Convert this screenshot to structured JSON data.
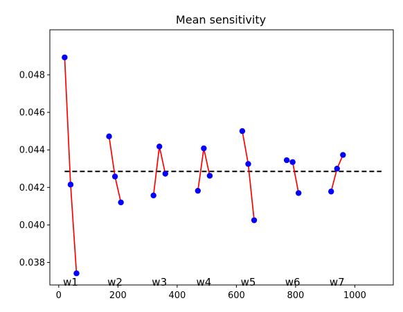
{
  "chart_data": {
    "type": "scatter",
    "title": "Mean sensitivity",
    "xlabel": "",
    "ylabel": "",
    "xlim": [
      -30,
      1130
    ],
    "ylim": [
      0.0368,
      0.0504
    ],
    "xticks": [
      0,
      200,
      400,
      600,
      800,
      1000
    ],
    "yticks": [
      0.038,
      0.04,
      0.042,
      0.044,
      0.046,
      0.048
    ],
    "xtick_labels": [
      "0",
      "200",
      "400",
      "600",
      "800",
      "1000"
    ],
    "ytick_labels": [
      "0.038",
      "0.040",
      "0.042",
      "0.044",
      "0.046",
      "0.048"
    ],
    "mean_line": {
      "y": 0.04285,
      "x_start": 20,
      "x_end": 1090,
      "style": "dashed",
      "color": "#000000"
    },
    "marker_color": "#0000ff",
    "line_color": "#ff0000",
    "groups": [
      {
        "label": "w1",
        "x": [
          20,
          40,
          60
        ],
        "y": [
          0.04893,
          0.04215,
          0.03742
        ]
      },
      {
        "label": "w2",
        "x": [
          170,
          190,
          210
        ],
        "y": [
          0.04472,
          0.04258,
          0.0412
        ]
      },
      {
        "label": "w3",
        "x": [
          320,
          340,
          360
        ],
        "y": [
          0.04157,
          0.04418,
          0.04273
        ]
      },
      {
        "label": "w4",
        "x": [
          470,
          490,
          510
        ],
        "y": [
          0.04182,
          0.04408,
          0.04262
        ]
      },
      {
        "label": "w5",
        "x": [
          620,
          640,
          660
        ],
        "y": [
          0.045,
          0.04325,
          0.04025
        ]
      },
      {
        "label": "w6",
        "x": [
          770,
          790,
          810
        ],
        "y": [
          0.04345,
          0.04335,
          0.0417
        ]
      },
      {
        "label": "w7",
        "x": [
          920,
          940,
          960
        ],
        "y": [
          0.04178,
          0.043,
          0.04373
        ]
      }
    ]
  }
}
